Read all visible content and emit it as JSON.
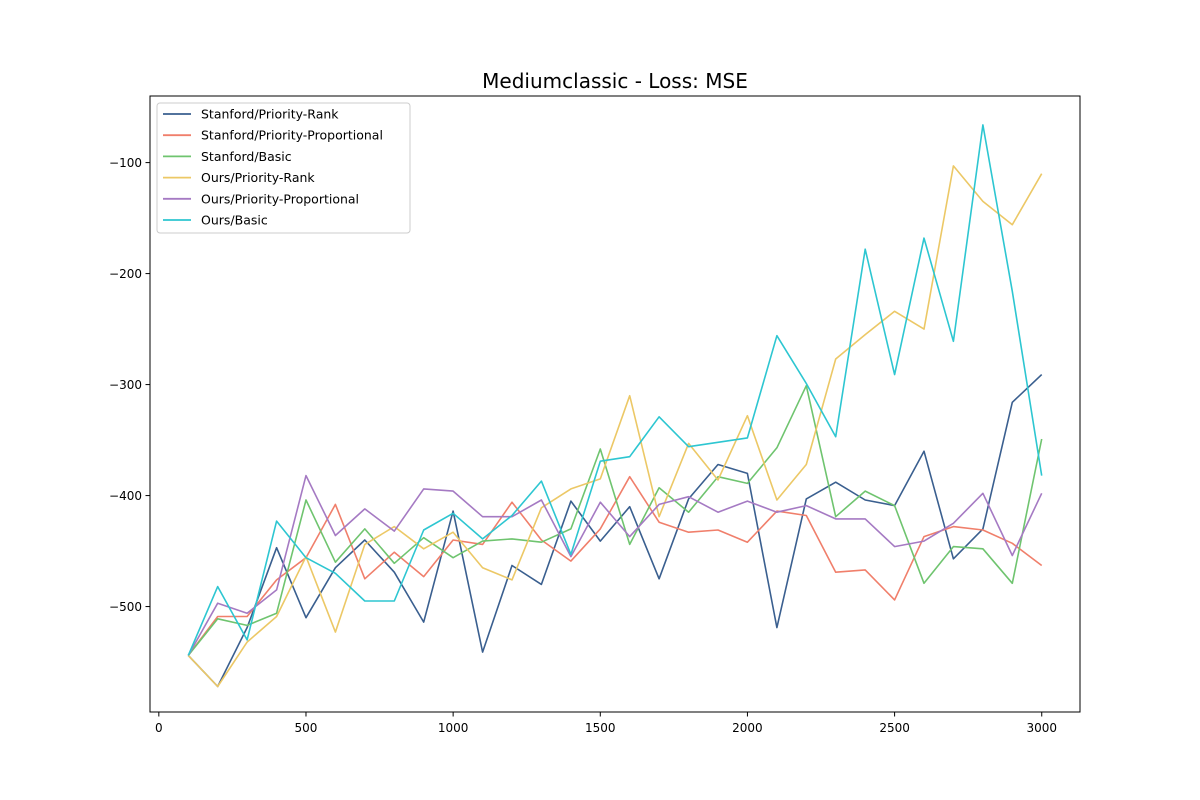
{
  "chart_data": {
    "type": "line",
    "title": "Mediumclassic - Loss: MSE",
    "xlabel": "",
    "ylabel": "",
    "xlim": [
      -30,
      3130
    ],
    "ylim": [
      -595,
      -40
    ],
    "xticks": [
      0,
      500,
      1000,
      1500,
      2000,
      2500,
      3000
    ],
    "yticks": [
      -500,
      -400,
      -300,
      -200,
      -100
    ],
    "x": [
      100,
      200,
      300,
      400,
      500,
      600,
      700,
      800,
      900,
      1000,
      1100,
      1200,
      1300,
      1400,
      1500,
      1600,
      1700,
      1800,
      1900,
      2000,
      2100,
      2200,
      2300,
      2400,
      2500,
      2600,
      2700,
      2800,
      2900,
      3000
    ],
    "legend_position": "top-left",
    "grid": false,
    "series": [
      {
        "name": "Stanford/Priority-Rank",
        "color": "#3a5f8f",
        "values": [
          -544,
          -572,
          -519,
          -447,
          -510,
          -465,
          -440,
          -469,
          -514,
          -414,
          -541,
          -463,
          -480,
          -405,
          -441,
          -410,
          -475,
          -403,
          -372,
          -380,
          -519,
          -403,
          -388,
          -404,
          -409,
          -360,
          -457,
          -430,
          -316,
          -291
        ]
      },
      {
        "name": "Stanford/Priority-Proportional",
        "color": "#f07f6b",
        "values": [
          -544,
          -509,
          -509,
          -476,
          -456,
          -408,
          -475,
          -451,
          -473,
          -440,
          -444,
          -406,
          -440,
          -459,
          -430,
          -383,
          -424,
          -433,
          -431,
          -442,
          -414,
          -418,
          -469,
          -467,
          -494,
          -437,
          -428,
          -431,
          -443,
          -463
        ]
      },
      {
        "name": "Stanford/Basic",
        "color": "#6fc46f",
        "values": [
          -544,
          -511,
          -517,
          -506,
          -404,
          -460,
          -430,
          -461,
          -438,
          -456,
          -441,
          -439,
          -442,
          -430,
          -358,
          -444,
          -393,
          -415,
          -383,
          -389,
          -357,
          -301,
          -419,
          -396,
          -409,
          -479,
          -446,
          -448,
          -479,
          -349
        ]
      },
      {
        "name": "Ours/Priority-Rank",
        "color": "#ecc866",
        "values": [
          -544,
          -572,
          -532,
          -509,
          -455,
          -523,
          -444,
          -428,
          -448,
          -433,
          -465,
          -476,
          -411,
          -394,
          -385,
          -310,
          -419,
          -353,
          -386,
          -328,
          -404,
          -372,
          -277,
          -255,
          -234,
          -250,
          -103,
          -135,
          -156,
          -110
        ]
      },
      {
        "name": "Ours/Priority-Proportional",
        "color": "#a57ac3",
        "values": [
          -544,
          -497,
          -506,
          -485,
          -382,
          -436,
          -412,
          -432,
          -394,
          -396,
          -419,
          -419,
          -404,
          -455,
          -406,
          -437,
          -408,
          -401,
          -415,
          -405,
          -415,
          -409,
          -421,
          -421,
          -446,
          -441,
          -425,
          -398,
          -454,
          -398
        ]
      },
      {
        "name": "Ours/Basic",
        "color": "#2dc6d1",
        "values": [
          -544,
          -482,
          -530,
          -423,
          -456,
          -470,
          -495,
          -495,
          -431,
          -416,
          -439,
          -418,
          -387,
          -453,
          -369,
          -365,
          -329,
          -356,
          -352,
          -348,
          -256,
          -299,
          -347,
          -178,
          -291,
          -168,
          -261,
          -66,
          -216,
          -382
        ]
      }
    ]
  }
}
